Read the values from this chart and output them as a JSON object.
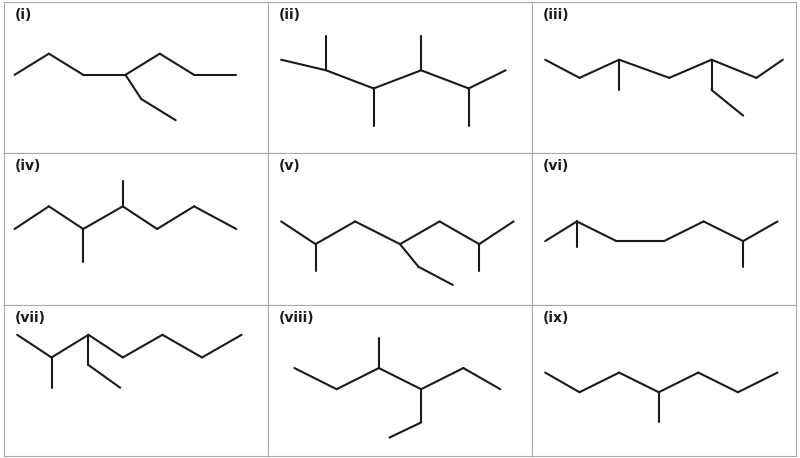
{
  "background_color": "#ffffff",
  "line_color": "#1a1a1a",
  "line_width": 1.5,
  "label_fontsize": 10,
  "grid": [
    [
      "i",
      "ii",
      "iii"
    ],
    [
      "iv",
      "v",
      "vi"
    ],
    [
      "vii",
      "viii",
      "ix"
    ]
  ],
  "labels": {
    "i": "(i)",
    "ii": "(ii)",
    "iii": "(iii)",
    "iv": "(iv)",
    "v": "(v)",
    "vi": "(vi)",
    "vii": "(vii)",
    "viii": "(viii)",
    "ix": "(ix)"
  }
}
